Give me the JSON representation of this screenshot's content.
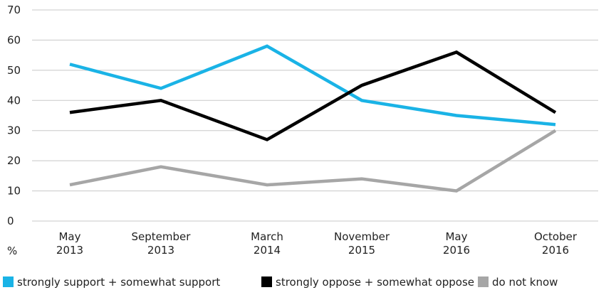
{
  "chart_data": {
    "type": "line",
    "categories": [
      [
        "May",
        "2013"
      ],
      [
        "September",
        "2013"
      ],
      [
        "March",
        "2014"
      ],
      [
        "November",
        "2015"
      ],
      [
        "May",
        "2016"
      ],
      [
        "October",
        "2016"
      ]
    ],
    "ylim": [
      0,
      70
    ],
    "yticks": [
      "0",
      "10",
      "20",
      "30",
      "40",
      "50",
      "60",
      "70"
    ],
    "ylabel": "%",
    "grid": true,
    "legend_position": "bottom",
    "series": [
      {
        "name": "strongly support + somewhat support",
        "color": "#1ab3e6",
        "values": [
          52,
          44,
          58,
          40,
          35,
          32
        ]
      },
      {
        "name": "strongly oppose + somewhat oppose",
        "color": "#000000",
        "values": [
          36,
          40,
          27,
          45,
          56,
          36
        ]
      },
      {
        "name": "do not know",
        "color": "#a6a6a6",
        "values": [
          12,
          18,
          12,
          14,
          10,
          30
        ]
      }
    ]
  }
}
